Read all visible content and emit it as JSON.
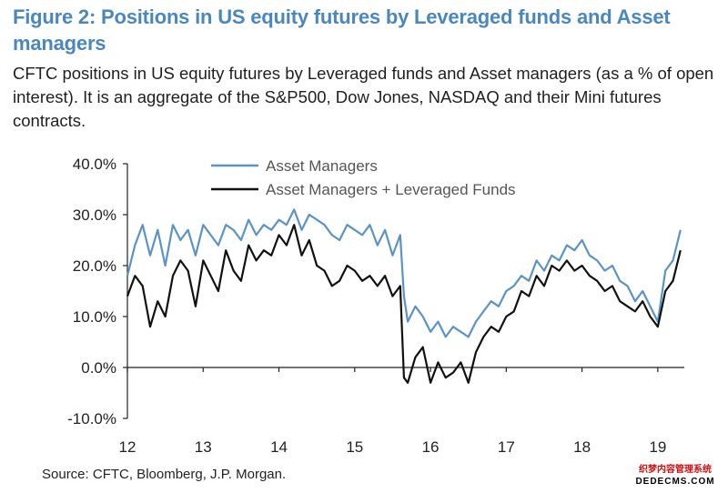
{
  "figure": {
    "title": "Figure 2: Positions in US equity futures by Leveraged funds and Asset managers",
    "description": "CFTC positions in US equity futures by Leveraged funds and Asset managers (as a % of open interest). It is an aggregate of the S&P500, Dow Jones, NASDAQ and their Mini futures contracts.",
    "source": "Source: CFTC, Bloomberg, J.P. Morgan.",
    "watermark_top": "织梦内容管理系统",
    "watermark_bottom": "DEDECMS.COM"
  },
  "colors": {
    "title": "#4a87bd",
    "asset_managers": "#5b93c6",
    "combined": "#111111",
    "axis": "#222222"
  },
  "chart_data": {
    "type": "line",
    "title": "Positions in US equity futures by Leveraged funds and Asset managers",
    "xlabel": "",
    "ylabel": "",
    "ylim": [
      -10,
      40
    ],
    "xlim": [
      12,
      19.35
    ],
    "yticks": [
      -10,
      0,
      10,
      20,
      30,
      40
    ],
    "ytick_labels": [
      "-10.0%",
      "0.0%",
      "10.0%",
      "20.0%",
      "30.0%",
      "40.0%"
    ],
    "xticks": [
      12,
      13,
      14,
      15,
      16,
      17,
      18,
      19
    ],
    "xtick_labels": [
      "12",
      "13",
      "14",
      "15",
      "16",
      "17",
      "18",
      "19"
    ],
    "grid": false,
    "legend_position": "top",
    "x": [
      12.0,
      12.1,
      12.2,
      12.3,
      12.4,
      12.5,
      12.6,
      12.7,
      12.8,
      12.9,
      13.0,
      13.1,
      13.2,
      13.3,
      13.4,
      13.5,
      13.6,
      13.7,
      13.8,
      13.9,
      14.0,
      14.1,
      14.2,
      14.3,
      14.4,
      14.5,
      14.6,
      14.7,
      14.8,
      14.9,
      15.0,
      15.1,
      15.2,
      15.3,
      15.4,
      15.5,
      15.6,
      15.65,
      15.7,
      15.8,
      15.9,
      16.0,
      16.1,
      16.2,
      16.3,
      16.4,
      16.5,
      16.6,
      16.7,
      16.8,
      16.9,
      17.0,
      17.1,
      17.2,
      17.3,
      17.4,
      17.5,
      17.6,
      17.7,
      17.8,
      17.9,
      18.0,
      18.1,
      18.2,
      18.3,
      18.4,
      18.5,
      18.6,
      18.7,
      18.8,
      18.9,
      19.0,
      19.1,
      19.2,
      19.3
    ],
    "series": [
      {
        "name": "Asset Managers",
        "values": [
          18,
          24,
          28,
          22,
          27,
          20,
          28,
          25,
          27,
          22,
          28,
          26,
          24,
          28,
          27,
          25,
          29,
          26,
          28,
          27,
          29,
          28,
          31,
          27,
          30,
          29,
          28,
          26,
          25,
          28,
          27,
          26,
          28,
          24,
          27,
          22,
          26,
          14,
          9,
          12,
          10,
          7,
          9,
          6,
          8,
          7,
          6,
          9,
          11,
          13,
          12,
          15,
          16,
          18,
          17,
          21,
          19,
          22,
          21,
          24,
          23,
          25,
          22,
          21,
          19,
          20,
          17,
          16,
          13,
          15,
          12,
          9,
          19,
          21,
          27
        ]
      },
      {
        "name": "Asset Managers + Leveraged Funds",
        "values": [
          14,
          18,
          16,
          8,
          13,
          10,
          18,
          21,
          19,
          12,
          21,
          18,
          15,
          23,
          19,
          17,
          24,
          21,
          23,
          22,
          26,
          24,
          28,
          22,
          25,
          20,
          19,
          16,
          17,
          20,
          19,
          17,
          18,
          16,
          18,
          14,
          16,
          -2,
          -3,
          2,
          4,
          -3,
          1,
          -2,
          -1,
          1,
          -3,
          3,
          6,
          8,
          7,
          10,
          11,
          15,
          14,
          18,
          16,
          20,
          19,
          21,
          19,
          20,
          18,
          17,
          15,
          16,
          13,
          12,
          11,
          13,
          10,
          8,
          15,
          17,
          23
        ]
      }
    ]
  }
}
